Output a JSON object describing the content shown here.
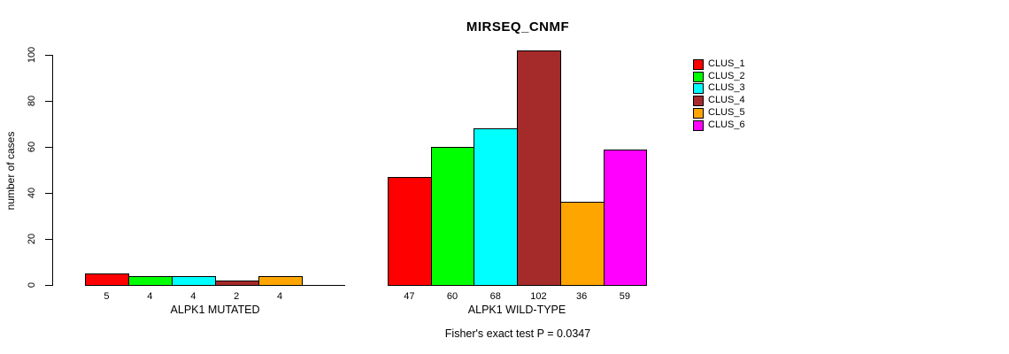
{
  "chart_data": {
    "type": "bar",
    "title": "MIRSEQ_CNMF",
    "ylabel": "number of cases",
    "ylim": [
      0,
      100
    ],
    "yticks": [
      0,
      20,
      40,
      60,
      80,
      100
    ],
    "grid": false,
    "legend_position": "right",
    "legend": [
      {
        "name": "CLUS_1",
        "color": "#FF0000"
      },
      {
        "name": "CLUS_2",
        "color": "#00FF00"
      },
      {
        "name": "CLUS_3",
        "color": "#00FFFF"
      },
      {
        "name": "CLUS_4",
        "color": "#A52A2A"
      },
      {
        "name": "CLUS_5",
        "color": "#FFA500"
      },
      {
        "name": "CLUS_6",
        "color": "#FF00FF"
      }
    ],
    "categories": [
      "ALPK1 MUTATED",
      "ALPK1 WILD-TYPE"
    ],
    "series": [
      {
        "name": "CLUS_1",
        "values": [
          5,
          47
        ]
      },
      {
        "name": "CLUS_2",
        "values": [
          4,
          60
        ]
      },
      {
        "name": "CLUS_3",
        "values": [
          4,
          68
        ]
      },
      {
        "name": "CLUS_4",
        "values": [
          2,
          102
        ]
      },
      {
        "name": "CLUS_5",
        "values": [
          4,
          36
        ]
      },
      {
        "name": "CLUS_6",
        "values": [
          0,
          59
        ]
      }
    ],
    "bar_value_labels_shown": true,
    "footnote": "Fisher's exact test P = 0.0347"
  }
}
